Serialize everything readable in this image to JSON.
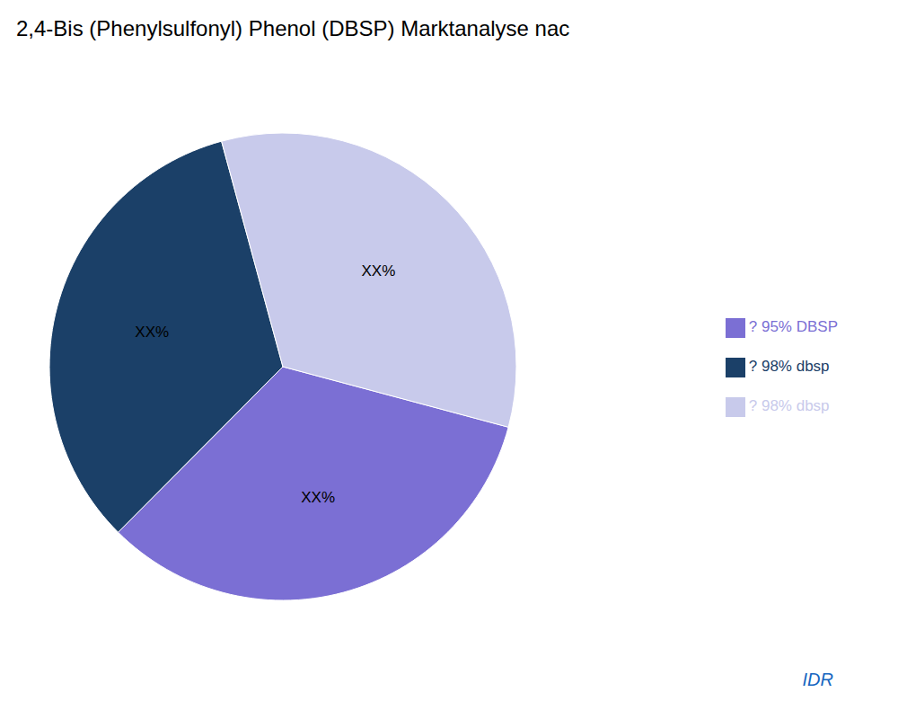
{
  "chart_data": {
    "type": "pie",
    "title": "2,4-Bis (Phenylsulfonyl) Phenol (DBSP) Marktanalyse nac",
    "categories": [
      "? 95% DBSP",
      "? 98% dbsp",
      "? 98% dbsp"
    ],
    "values": [
      33.3,
      33.3,
      33.4
    ],
    "value_labels": [
      "XX%",
      "XX%",
      "XX%"
    ],
    "colors": [
      "#7B6FD4",
      "#1B4068",
      "#C8CAEB"
    ],
    "data_labels": true,
    "legend": "right",
    "annotations": [
      {
        "text": "IDR",
        "color": "#1565C0"
      }
    ]
  }
}
